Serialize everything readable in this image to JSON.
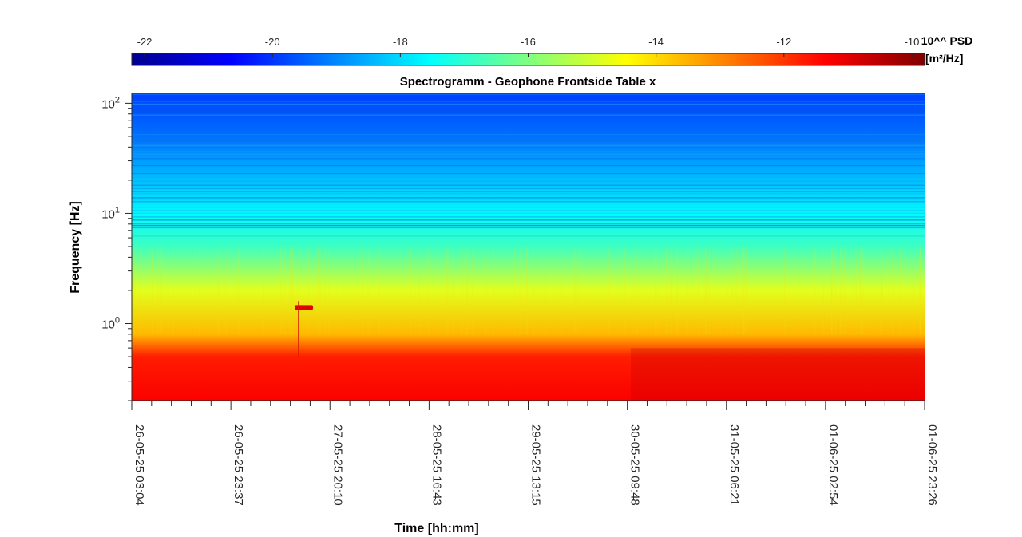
{
  "chart_data": {
    "type": "heatmap",
    "title": "Spectrogramm - Geophone Frontside Table x",
    "xlabel": "Time [hh:mm]",
    "ylabel": "Frequency [Hz]",
    "y_scale": "log",
    "ylim": [
      0.2,
      125
    ],
    "y_ticks": [
      {
        "value": 1,
        "base": "10",
        "exp": "0"
      },
      {
        "value": 10,
        "base": "10",
        "exp": "1"
      },
      {
        "value": 100,
        "base": "10",
        "exp": "2"
      }
    ],
    "x_ticks": [
      "26-05-25 03:04",
      "26-05-25 23:37",
      "27-05-25 20:10",
      "28-05-25 16:43",
      "29-05-25 13:15",
      "30-05-25 09:48",
      "31-05-25 06:21",
      "01-06-25 02:54",
      "01-06-25 23:26"
    ],
    "colorbar": {
      "label_line1": "10^^ PSD",
      "label_line2": "[m²/Hz]",
      "ticks": [
        "-22",
        "-20",
        "-18",
        "-16",
        "-14",
        "-12",
        "-10"
      ],
      "range": [
        -22.2,
        -9.8
      ],
      "colormap": "jet"
    },
    "psd_profile_log10": [
      {
        "freq_hz": 0.2,
        "value": -11.3
      },
      {
        "freq_hz": 0.5,
        "value": -11.7
      },
      {
        "freq_hz": 0.8,
        "value": -13.6
      },
      {
        "freq_hz": 2.0,
        "value": -14.8
      },
      {
        "freq_hz": 5.0,
        "value": -16.8
      },
      {
        "freq_hz": 10.0,
        "value": -17.6
      },
      {
        "freq_hz": 20.0,
        "value": -18.3
      },
      {
        "freq_hz": 50.0,
        "value": -19.3
      },
      {
        "freq_hz": 125.0,
        "value": -19.9
      }
    ],
    "event": {
      "time": "27-05-25 ~09:00",
      "freq_hz": 1.4,
      "value": -11.0
    }
  }
}
